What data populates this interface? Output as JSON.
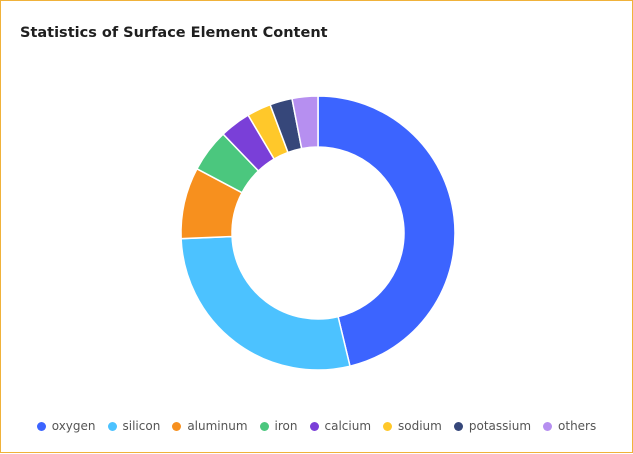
{
  "chart_data": {
    "type": "pie",
    "title": "Statistics of Surface Element Content",
    "donut": true,
    "categories": [
      "oxygen",
      "silicon",
      "aluminum",
      "iron",
      "calcium",
      "sodium",
      "potassium",
      "others"
    ],
    "values": [
      45.6,
      27.7,
      8.3,
      5.0,
      3.6,
      2.8,
      2.6,
      3.0
    ],
    "colors": [
      "#3c64ff",
      "#4cc2ff",
      "#f7901e",
      "#4bc77e",
      "#7a3fd8",
      "#ffc82a",
      "#36477a",
      "#b68ff0"
    ],
    "legend_position": "bottom"
  }
}
